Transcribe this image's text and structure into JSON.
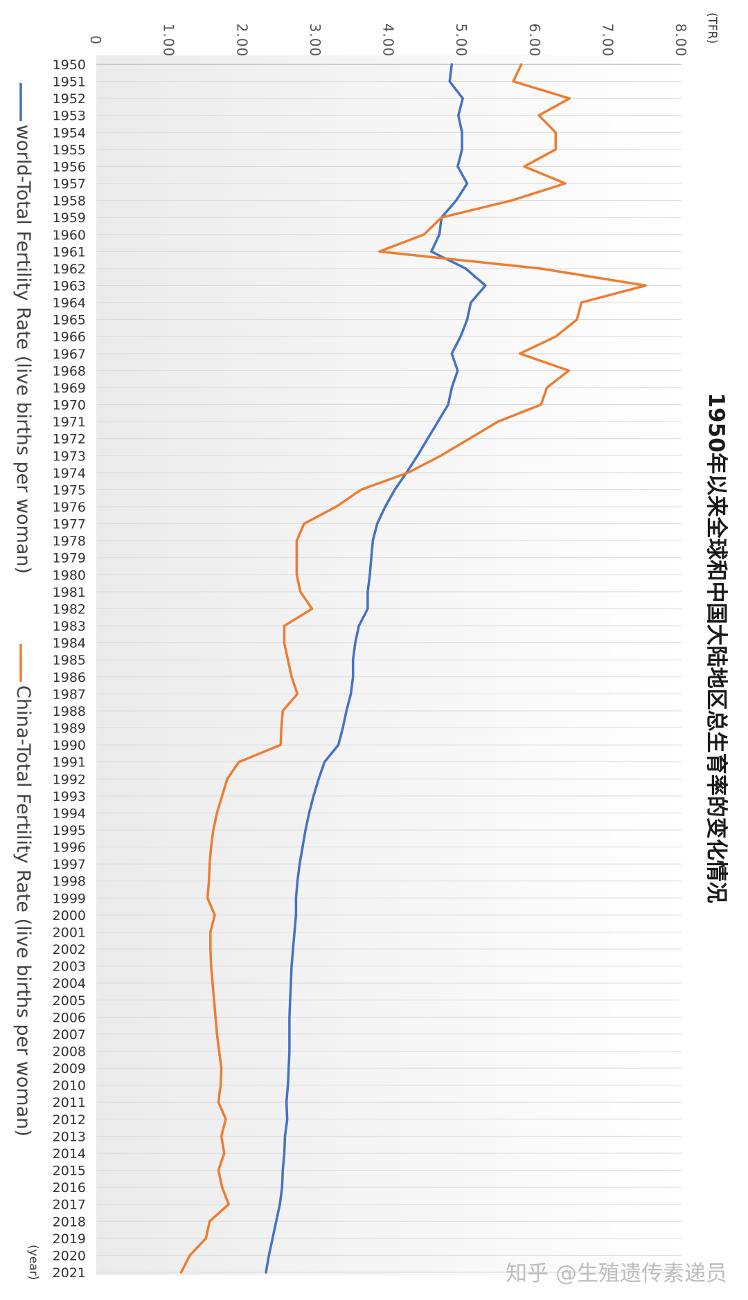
{
  "chart_data": {
    "type": "line",
    "title": "1950年以来全球和中国大陆地区总生育率的变化情况",
    "x_unit_label": "(year)",
    "y_unit_label": "(TFR)",
    "ylim": [
      0,
      8
    ],
    "y_ticks": [
      "0",
      "1.00",
      "2.00",
      "3.00",
      "4.00",
      "5.00",
      "6.00",
      "7.00",
      "8.00"
    ],
    "grid": true,
    "legend_position": "left",
    "orientation": "rotated 90° clockwise",
    "x": [
      1950,
      1951,
      1952,
      1953,
      1954,
      1955,
      1956,
      1957,
      1958,
      1959,
      1960,
      1961,
      1962,
      1963,
      1964,
      1965,
      1966,
      1967,
      1968,
      1969,
      1970,
      1971,
      1972,
      1973,
      1974,
      1975,
      1976,
      1977,
      1978,
      1979,
      1980,
      1981,
      1982,
      1983,
      1984,
      1985,
      1986,
      1987,
      1988,
      1989,
      1990,
      1991,
      1992,
      1993,
      1994,
      1995,
      1996,
      1997,
      1998,
      1999,
      2000,
      2001,
      2002,
      2003,
      2004,
      2005,
      2006,
      2007,
      2008,
      2009,
      2010,
      2011,
      2012,
      2013,
      2014,
      2015,
      2016,
      2017,
      2018,
      2019,
      2020,
      2021
    ],
    "series": [
      {
        "name": "world-Total Fertility Rate (live births per woman)",
        "color": "#4472c4",
        "values": [
          4.86,
          4.83,
          5.01,
          4.95,
          5.0,
          5.0,
          4.94,
          5.07,
          4.92,
          4.72,
          4.69,
          4.58,
          5.05,
          5.32,
          5.12,
          5.07,
          4.98,
          4.86,
          4.94,
          4.86,
          4.81,
          4.67,
          4.53,
          4.39,
          4.24,
          4.08,
          3.95,
          3.84,
          3.78,
          3.76,
          3.74,
          3.71,
          3.71,
          3.59,
          3.54,
          3.51,
          3.51,
          3.48,
          3.42,
          3.37,
          3.31,
          3.12,
          3.04,
          2.97,
          2.91,
          2.86,
          2.82,
          2.78,
          2.75,
          2.73,
          2.73,
          2.71,
          2.69,
          2.67,
          2.66,
          2.65,
          2.64,
          2.64,
          2.64,
          2.63,
          2.62,
          2.6,
          2.61,
          2.58,
          2.57,
          2.55,
          2.54,
          2.51,
          2.46,
          2.41,
          2.36,
          2.32
        ]
      },
      {
        "name": "China-Total Fertility Rate (live births per woman)",
        "color": "#ed7d31",
        "values": [
          5.81,
          5.7,
          6.47,
          6.05,
          6.28,
          6.28,
          5.85,
          6.41,
          5.68,
          4.72,
          4.48,
          3.87,
          6.07,
          7.51,
          6.63,
          6.57,
          6.28,
          5.79,
          6.46,
          6.16,
          6.08,
          5.49,
          5.1,
          4.71,
          4.26,
          3.62,
          3.28,
          2.84,
          2.74,
          2.74,
          2.74,
          2.79,
          2.95,
          2.57,
          2.57,
          2.62,
          2.67,
          2.75,
          2.55,
          2.53,
          2.52,
          1.95,
          1.79,
          1.72,
          1.65,
          1.6,
          1.57,
          1.55,
          1.54,
          1.52,
          1.62,
          1.56,
          1.56,
          1.57,
          1.59,
          1.61,
          1.63,
          1.65,
          1.68,
          1.71,
          1.7,
          1.67,
          1.77,
          1.71,
          1.75,
          1.67,
          1.72,
          1.81,
          1.55,
          1.5,
          1.28,
          1.16
        ]
      }
    ]
  },
  "watermark": "知乎 @生殖遗传素递员"
}
